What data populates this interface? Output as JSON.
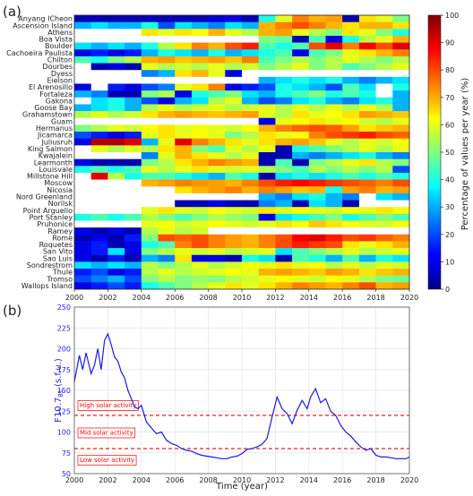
{
  "chart_data": [
    {
      "panel_label": "(a)",
      "type": "heatmap",
      "x": [
        2000,
        2001,
        2002,
        2003,
        2004,
        2005,
        2006,
        2007,
        2008,
        2009,
        2010,
        2011,
        2012,
        2013,
        2014,
        2015,
        2016,
        2017,
        2018,
        2019
      ],
      "x_ticks": [
        "2000",
        "2002",
        "2004",
        "2006",
        "2008",
        "2010",
        "2012",
        "2014",
        "2016",
        "2018",
        "2020"
      ],
      "xlim": [
        2000,
        2020
      ],
      "stations": [
        "Anyang ICheon",
        "Ascension Island",
        "Athens",
        "Boa Vista",
        "Boulder",
        "Cachoeira Paulista",
        "Chilton",
        "Dourbes",
        "Dyess",
        "Eielson",
        "El Arenosillo",
        "Fortaleza",
        "Gakona",
        "Goose Bay",
        "Grahamstown",
        "Guam",
        "Hermanus",
        "Jicamarca",
        "Juliusruh",
        "King Salmon",
        "Kwajalein",
        "Learmonth",
        "Louisvale",
        "Millstone Hill",
        "Moscow",
        "Nicosia",
        "Nord Greenland",
        "Norilsk",
        "Point Arguello",
        "Port Stanley",
        "Pruhonice",
        "Ramey",
        "Rome",
        "Roquetes",
        "San Vito",
        "Sao Luis",
        "Sondrestrom",
        "Thule",
        "Tromso",
        "Wallops Island"
      ],
      "values": [
        [
          5,
          5,
          5,
          5,
          5,
          5,
          5,
          5,
          8,
          10,
          5,
          40,
          60,
          75,
          70,
          72,
          5,
          65,
          60,
          50
        ],
        [
          30,
          35,
          30,
          30,
          40,
          20,
          35,
          30,
          25,
          35,
          30,
          70,
          75,
          80,
          75,
          70,
          65,
          70,
          70,
          65
        ],
        [
          null,
          null,
          null,
          null,
          65,
          60,
          65,
          62,
          70,
          60,
          55,
          70,
          72,
          60,
          55,
          50,
          65,
          60,
          50,
          40
        ],
        [
          null,
          null,
          null,
          null,
          null,
          null,
          null,
          null,
          null,
          null,
          null,
          50,
          48,
          5,
          45,
          10,
          40,
          55,
          60,
          70
        ],
        [
          35,
          30,
          35,
          30,
          40,
          55,
          65,
          75,
          70,
          80,
          85,
          45,
          40,
          45,
          80,
          90,
          75,
          88,
          80,
          90
        ],
        [
          10,
          15,
          10,
          15,
          30,
          40,
          35,
          30,
          40,
          30,
          35,
          40,
          45,
          10,
          45,
          50,
          60,
          65,
          70,
          75
        ],
        [
          45,
          40,
          50,
          55,
          70,
          72,
          68,
          70,
          72,
          68,
          75,
          45,
          50,
          55,
          50,
          55,
          60,
          55,
          50,
          55
        ],
        [
          null,
          5,
          10,
          5,
          60,
          55,
          58,
          55,
          60,
          55,
          58,
          50,
          55,
          60,
          50,
          55,
          45,
          50,
          55,
          60
        ],
        [
          null,
          null,
          null,
          null,
          25,
          30,
          65,
          70,
          60,
          10,
          null,
          null,
          null,
          null,
          null,
          null,
          null,
          null,
          null,
          null
        ],
        [
          null,
          null,
          null,
          null,
          null,
          null,
          null,
          null,
          null,
          null,
          null,
          30,
          35,
          40,
          35,
          40,
          30,
          25,
          30,
          35
        ],
        [
          10,
          null,
          15,
          10,
          20,
          25,
          60,
          65,
          75,
          10,
          15,
          20,
          40,
          35,
          30,
          20,
          45,
          35,
          null,
          40
        ],
        [
          30,
          25,
          5,
          5,
          50,
          55,
          10,
          40,
          45,
          50,
          35,
          30,
          40,
          45,
          50,
          40,
          45,
          40,
          null,
          30
        ],
        [
          null,
          35,
          40,
          30,
          20,
          10,
          30,
          35,
          55,
          60,
          30,
          20,
          25,
          35,
          40,
          30,
          25,
          35,
          40,
          30
        ],
        [
          30,
          35,
          40,
          30,
          55,
          60,
          55,
          58,
          60,
          55,
          58,
          60,
          55,
          60,
          55,
          60,
          55,
          60,
          55,
          30
        ],
        [
          55,
          60,
          55,
          58,
          65,
          70,
          72,
          70,
          68,
          70,
          72,
          60,
          55,
          65,
          60,
          62,
          65,
          72,
          70,
          68
        ],
        [
          null,
          null,
          null,
          null,
          null,
          null,
          null,
          null,
          null,
          null,
          null,
          10,
          60,
          62,
          65,
          60,
          62,
          58,
          55,
          60
        ],
        [
          50,
          55,
          60,
          58,
          62,
          65,
          60,
          62,
          60,
          58,
          62,
          70,
          75,
          78,
          80,
          78,
          72,
          65,
          68,
          70
        ],
        [
          20,
          15,
          10,
          15,
          60,
          65,
          60,
          62,
          60,
          50,
          55,
          65,
          60,
          62,
          75,
          80,
          82,
          85,
          80,
          78
        ],
        [
          10,
          95,
          95,
          90,
          30,
          60,
          90,
          75,
          70,
          65,
          60,
          65,
          70,
          72,
          68,
          60,
          55,
          60,
          58,
          62
        ],
        [
          null,
          60,
          55,
          60,
          55,
          65,
          70,
          50,
          45,
          60,
          55,
          60,
          5,
          40,
          45,
          50,
          55,
          60,
          55,
          60
        ],
        [
          null,
          null,
          null,
          null,
          25,
          60,
          70,
          65,
          60,
          55,
          60,
          5,
          5,
          30,
          25,
          30,
          35,
          40,
          30,
          25
        ],
        [
          10,
          5,
          5,
          5,
          50,
          55,
          65,
          70,
          75,
          72,
          70,
          5,
          45,
          5,
          50,
          55,
          60,
          65,
          55,
          50
        ],
        [
          40,
          45,
          40,
          45,
          60,
          55,
          60,
          65,
          60,
          58,
          60,
          55,
          50,
          45,
          55,
          50,
          55,
          50,
          55,
          20
        ],
        [
          null,
          90,
          55,
          40,
          45,
          45,
          40,
          35,
          30,
          45,
          40,
          5,
          35,
          40,
          35,
          40,
          45,
          40,
          45,
          40
        ],
        [
          null,
          null,
          null,
          null,
          70,
          72,
          75,
          73,
          72,
          70,
          75,
          80,
          85,
          88,
          85,
          82,
          80,
          78,
          75,
          80
        ],
        [
          null,
          null,
          null,
          null,
          null,
          null,
          65,
          70,
          72,
          75,
          70,
          75,
          72,
          68,
          70,
          40,
          72,
          75,
          70,
          72
        ],
        [
          null,
          null,
          null,
          null,
          null,
          null,
          null,
          null,
          null,
          null,
          null,
          30,
          25,
          35,
          40,
          30,
          25,
          null,
          35,
          30
        ],
        [
          null,
          null,
          null,
          null,
          null,
          null,
          5,
          5,
          10,
          5,
          5,
          25,
          30,
          5,
          35,
          30,
          5,
          null,
          null,
          null
        ],
        [
          null,
          null,
          null,
          null,
          60,
          65,
          60,
          58,
          62,
          60,
          58,
          65,
          60,
          62,
          60,
          58,
          62,
          60,
          65,
          62
        ],
        [
          40,
          45,
          40,
          45,
          55,
          50,
          45,
          50,
          55,
          52,
          50,
          10,
          35,
          40,
          45,
          50,
          40,
          45,
          50,
          45
        ],
        [
          null,
          null,
          null,
          null,
          60,
          62,
          58,
          60,
          62,
          60,
          58,
          60,
          65,
          62,
          68,
          65,
          62,
          60,
          58,
          62
        ],
        [
          10,
          5,
          10,
          5,
          55,
          60,
          55,
          58,
          null,
          null,
          null,
          null,
          null,
          null,
          null,
          null,
          null,
          null,
          null,
          null
        ],
        [
          5,
          10,
          5,
          15,
          50,
          80,
          78,
          80,
          75,
          72,
          70,
          75,
          80,
          88,
          90,
          85,
          80,
          82,
          78,
          75
        ],
        [
          10,
          15,
          5,
          10,
          40,
          45,
          75,
          80,
          75,
          72,
          70,
          75,
          80,
          85,
          82,
          80,
          65,
          60,
          65,
          70
        ],
        [
          10,
          15,
          35,
          10,
          50,
          55,
          60,
          58,
          60,
          55,
          58,
          60,
          35,
          45,
          50,
          55,
          60,
          55,
          58,
          60
        ],
        [
          10,
          5,
          15,
          5,
          30,
          25,
          65,
          10,
          10,
          5,
          40,
          35,
          5,
          45,
          40,
          30,
          45,
          30,
          40,
          35
        ],
        [
          35,
          30,
          35,
          30,
          55,
          50,
          55,
          60,
          55,
          58,
          62,
          60,
          65,
          60,
          62,
          55,
          60,
          55,
          60,
          58
        ],
        [
          15,
          20,
          10,
          15,
          55,
          60,
          55,
          58,
          60,
          62,
          60,
          70,
          72,
          70,
          68,
          72,
          70,
          65,
          68,
          70
        ],
        [
          20,
          25,
          30,
          20,
          50,
          55,
          50,
          52,
          50,
          55,
          58,
          60,
          62,
          60,
          58,
          62,
          60,
          55,
          50,
          48
        ],
        [
          10,
          15,
          20,
          15,
          40,
          45,
          50,
          55,
          60,
          65,
          60,
          65,
          70,
          75,
          72,
          70,
          75,
          80,
          70,
          72
        ]
      ],
      "colorbar_label": "Percentage of values per year (%)",
      "colorbar_ticks": [
        0,
        10,
        20,
        30,
        40,
        50,
        60,
        70,
        80,
        90,
        100
      ],
      "zlim": [
        0,
        100
      ],
      "colormap": "jet"
    },
    {
      "panel_label": "(b)",
      "type": "line",
      "xlabel": "Time (year)",
      "ylabel_main": "F10.7",
      "ylabel_sub": "81",
      "ylabel_unit": "(s.f.u.)",
      "xlim": [
        2000,
        2020
      ],
      "ylim": [
        50,
        250
      ],
      "x_ticks": [
        "2000",
        "2002",
        "2004",
        "2006",
        "2008",
        "2010",
        "2012",
        "2014",
        "2016",
        "2018",
        "2020"
      ],
      "y_ticks": [
        "50",
        "75",
        "100",
        "125",
        "150",
        "175",
        "200",
        "225",
        "250"
      ],
      "grid": true,
      "line_color": "#1a1ae6",
      "series": [
        {
          "x": [
            2000.0,
            2000.3,
            2000.5,
            2000.7,
            2001.0,
            2001.2,
            2001.4,
            2001.6,
            2001.8,
            2002.0,
            2002.2,
            2002.4,
            2002.6,
            2002.8,
            2003.0,
            2003.2,
            2003.4,
            2003.6,
            2003.8,
            2004.0,
            2004.3,
            2004.6,
            2004.9,
            2005.2,
            2005.5,
            2005.8,
            2006.1,
            2006.4,
            2006.7,
            2007.0,
            2007.3,
            2007.6,
            2007.9,
            2008.2,
            2008.5,
            2008.8,
            2009.1,
            2009.4,
            2009.7,
            2010.0,
            2010.3,
            2010.6,
            2010.9,
            2011.2,
            2011.5,
            2011.8,
            2012.1,
            2012.4,
            2012.7,
            2013.0,
            2013.3,
            2013.6,
            2013.9,
            2014.1,
            2014.4,
            2014.7,
            2015.0,
            2015.3,
            2015.6,
            2015.9,
            2016.2,
            2016.5,
            2016.8,
            2017.1,
            2017.4,
            2017.7,
            2018.0,
            2018.3,
            2018.6,
            2018.9,
            2019.2,
            2019.5,
            2019.8,
            2020.0
          ],
          "y": [
            160,
            192,
            175,
            195,
            170,
            180,
            200,
            175,
            210,
            218,
            205,
            190,
            185,
            172,
            165,
            150,
            140,
            130,
            128,
            132,
            112,
            105,
            98,
            100,
            90,
            86,
            84,
            80,
            78,
            77,
            74,
            72,
            71,
            70,
            69,
            68,
            68,
            70,
            71,
            74,
            79,
            80,
            82,
            85,
            92,
            118,
            142,
            128,
            122,
            110,
            126,
            138,
            128,
            142,
            152,
            135,
            140,
            125,
            120,
            108,
            100,
            95,
            88,
            82,
            78,
            80,
            72,
            70,
            70,
            69,
            68,
            68,
            68,
            70
          ]
        }
      ],
      "threshold_color": "#ff0000",
      "thresholds": [
        {
          "value": 120,
          "label": "High solar activity"
        },
        {
          "value": 80,
          "label": "Mid solar activity"
        },
        {
          "value": null,
          "label": "Low solar activity"
        }
      ]
    }
  ]
}
